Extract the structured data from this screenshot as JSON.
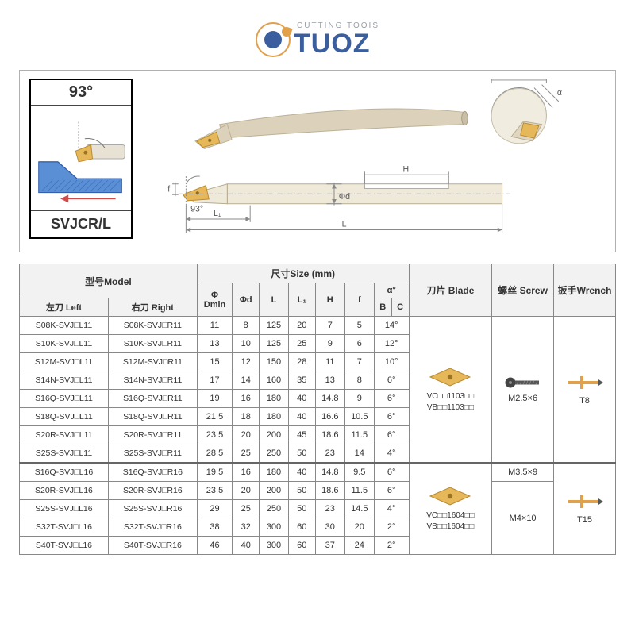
{
  "logo": {
    "sub": "CUTTING TOOIS",
    "main": "TUOZ"
  },
  "infobox": {
    "angle": "93°",
    "code": "SVJCR/L"
  },
  "diagram_labels": {
    "dmin": "Dmin",
    "alpha": "α",
    "H": "H",
    "phi_d": "Φd",
    "L": "L",
    "L1": "L₁",
    "f": "f",
    "angle93": "93°"
  },
  "colors": {
    "brand_blue": "#3b5f9e",
    "brand_gold": "#e1a04a",
    "tool_body": "#d8cdb8",
    "tool_tip": "#e6b85a",
    "workpiece": "#5a8fd6",
    "arrow_red": "#d04a4a",
    "grid": "#888888"
  },
  "table": {
    "headers": {
      "model": "型号Model",
      "left": "左刀 Left",
      "right": "右刀 Right",
      "size": "尺寸Size (mm)",
      "dmin": "Φ\nDmin",
      "phi_d": "Φd",
      "L": "L",
      "L1": "L₁",
      "H": "H",
      "f": "f",
      "alpha": "α°",
      "B": "B",
      "C": "C",
      "blade": "刀片 Blade",
      "screw": "螺丝 Screw",
      "wrench": "扳手Wrench"
    },
    "group1": {
      "rows": [
        {
          "left": "S08K-SVJ□L11",
          "right": "S08K-SVJ□R11",
          "dmin": "11",
          "phid": "8",
          "L": "125",
          "L1": "20",
          "H": "7",
          "f": "5",
          "a": "14°"
        },
        {
          "left": "S10K-SVJ□L11",
          "right": "S10K-SVJ□R11",
          "dmin": "13",
          "phid": "10",
          "L": "125",
          "L1": "25",
          "H": "9",
          "f": "6",
          "a": "12°"
        },
        {
          "left": "S12M-SVJ□L11",
          "right": "S12M-SVJ□R11",
          "dmin": "15",
          "phid": "12",
          "L": "150",
          "L1": "28",
          "H": "11",
          "f": "7",
          "a": "10°"
        },
        {
          "left": "S14N-SVJ□L11",
          "right": "S14N-SVJ□R11",
          "dmin": "17",
          "phid": "14",
          "L": "160",
          "L1": "35",
          "H": "13",
          "f": "8",
          "a": "6°"
        },
        {
          "left": "S16Q-SVJ□L11",
          "right": "S16Q-SVJ□R11",
          "dmin": "19",
          "phid": "16",
          "L": "180",
          "L1": "40",
          "H": "14.8",
          "f": "9",
          "a": "6°"
        },
        {
          "left": "S18Q-SVJ□L11",
          "right": "S18Q-SVJ□R11",
          "dmin": "21.5",
          "phid": "18",
          "L": "180",
          "L1": "40",
          "H": "16.6",
          "f": "10.5",
          "a": "6°"
        },
        {
          "left": "S20R-SVJ□L11",
          "right": "S20R-SVJ□R11",
          "dmin": "23.5",
          "phid": "20",
          "L": "200",
          "L1": "45",
          "H": "18.6",
          "f": "11.5",
          "a": "6°"
        },
        {
          "left": "S25S-SVJ□L11",
          "right": "S25S-SVJ□R11",
          "dmin": "28.5",
          "phid": "25",
          "L": "250",
          "L1": "50",
          "H": "23",
          "f": "14",
          "a": "4°"
        }
      ],
      "blade": "VC□□1103□□\nVB□□1103□□",
      "screw": "M2.5×6",
      "wrench": "T8"
    },
    "group2": {
      "rows": [
        {
          "left": "S16Q-SVJ□L16",
          "right": "S16Q-SVJ□R16",
          "dmin": "19.5",
          "phid": "16",
          "L": "180",
          "L1": "40",
          "H": "14.8",
          "f": "9.5",
          "a": "6°"
        },
        {
          "left": "S20R-SVJ□L16",
          "right": "S20R-SVJ□R16",
          "dmin": "23.5",
          "phid": "20",
          "L": "200",
          "L1": "50",
          "H": "18.6",
          "f": "11.5",
          "a": "6°"
        },
        {
          "left": "S25S-SVJ□L16",
          "right": "S25S-SVJ□R16",
          "dmin": "29",
          "phid": "25",
          "L": "250",
          "L1": "50",
          "H": "23",
          "f": "14.5",
          "a": "4°"
        },
        {
          "left": "S32T-SVJ□L16",
          "right": "S32T-SVJ□R16",
          "dmin": "38",
          "phid": "32",
          "L": "300",
          "L1": "60",
          "H": "30",
          "f": "20",
          "a": "2°"
        },
        {
          "left": "S40T-SVJ□L16",
          "right": "S40T-SVJ□R16",
          "dmin": "46",
          "phid": "40",
          "L": "300",
          "L1": "60",
          "H": "37",
          "f": "24",
          "a": "2°"
        }
      ],
      "blade": "VC□□1604□□\nVB□□1604□□",
      "screw1": "M3.5×9",
      "screw2": "M4×10",
      "wrench": "T15"
    }
  }
}
